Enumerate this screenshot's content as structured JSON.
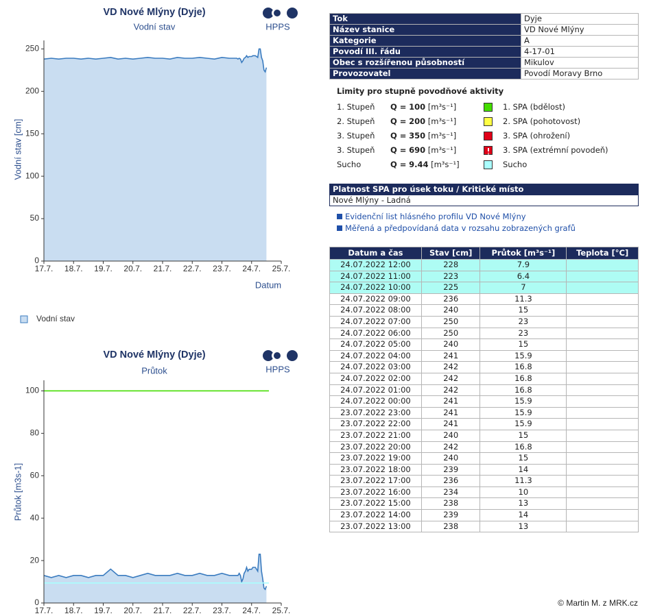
{
  "chart_data": [
    {
      "type": "area",
      "title": "VD Nové Mlýny (Dyje)",
      "subtitle": "Vodní stav",
      "brand": "HPPS",
      "ylabel": "Vodní stav [cm]",
      "xlabel": "Datum",
      "x": [
        17,
        17.25,
        17.5,
        17.75,
        18,
        18.25,
        18.5,
        18.75,
        19,
        19.25,
        19.5,
        19.75,
        20,
        20.25,
        20.5,
        20.75,
        21,
        21.25,
        21.5,
        21.75,
        22,
        22.25,
        22.5,
        22.75,
        23,
        23.25,
        23.5,
        23.542,
        23.583,
        23.625,
        23.667,
        23.708,
        23.75,
        23.792,
        23.833,
        23.875,
        23.917,
        23.958,
        24,
        24.042,
        24.083,
        24.125,
        24.167,
        24.208,
        24.25,
        24.292,
        24.333,
        24.375,
        24.417,
        24.458,
        24.5
      ],
      "series": [
        {
          "name": "Vodní stav",
          "color": "#3a7bbf",
          "fill": "#c9ddf1",
          "values": [
            238,
            239,
            238,
            239,
            239,
            238,
            239,
            238,
            239,
            240,
            238,
            239,
            238,
            239,
            240,
            239,
            239,
            238,
            240,
            239,
            239,
            240,
            239,
            238,
            240,
            239,
            239,
            238,
            239,
            238,
            234,
            236,
            239,
            240,
            242,
            240,
            241,
            241,
            241,
            242,
            242,
            242,
            241,
            240,
            250,
            250,
            240,
            236,
            225,
            223,
            228
          ]
        }
      ],
      "xlim": [
        17,
        25
      ],
      "ylim": [
        0,
        260
      ],
      "xticks": [
        {
          "value": 17,
          "label": "17.7."
        },
        {
          "value": 18,
          "label": "18.7."
        },
        {
          "value": 19,
          "label": "19.7."
        },
        {
          "value": 20,
          "label": "20.7."
        },
        {
          "value": 21,
          "label": "21.7."
        },
        {
          "value": 22,
          "label": "22.7."
        },
        {
          "value": 23,
          "label": "23.7."
        },
        {
          "value": 24,
          "label": "24.7."
        },
        {
          "value": 25,
          "label": "25.7."
        }
      ],
      "yticks": [
        0,
        50,
        100,
        150,
        200,
        250
      ],
      "legend": "bottom-left"
    },
    {
      "type": "area",
      "title": "VD Nové Mlýny (Dyje)",
      "subtitle": "Průtok",
      "brand": "HPPS",
      "ylabel": "Průtok [m3s-1]",
      "x": [
        17,
        17.25,
        17.5,
        17.75,
        18,
        18.25,
        18.5,
        18.75,
        19,
        19.25,
        19.5,
        19.75,
        20,
        20.25,
        20.5,
        20.75,
        21,
        21.25,
        21.5,
        21.75,
        22,
        22.25,
        22.5,
        22.75,
        23,
        23.25,
        23.5,
        23.542,
        23.583,
        23.625,
        23.667,
        23.708,
        23.75,
        23.792,
        23.833,
        23.875,
        23.917,
        23.958,
        24,
        24.042,
        24.083,
        24.125,
        24.167,
        24.208,
        24.25,
        24.292,
        24.333,
        24.375,
        24.417,
        24.458,
        24.5
      ],
      "series": [
        {
          "color": "#3a7bbf",
          "fill": "#c9ddf1",
          "values": [
            13,
            12,
            13,
            12,
            13,
            13,
            12,
            13,
            13,
            16,
            13,
            13,
            12,
            13,
            14,
            13,
            13,
            13,
            14,
            13,
            13,
            14,
            13,
            13,
            14,
            13,
            13,
            13,
            14,
            13,
            10,
            11.3,
            14,
            15,
            16.8,
            15,
            15.9,
            15.9,
            15.9,
            16.8,
            16.8,
            16.8,
            15.9,
            15,
            23,
            23,
            15,
            11.3,
            7,
            6.4,
            7.9
          ]
        }
      ],
      "xlim": [
        17,
        25
      ],
      "ylim": [
        0,
        105
      ],
      "xticks": [
        {
          "value": 17,
          "label": "17.7."
        },
        {
          "value": 18,
          "label": "18.7."
        },
        {
          "value": 19,
          "label": "19.7."
        },
        {
          "value": 20,
          "label": "20.7."
        },
        {
          "value": 21,
          "label": "21.7."
        },
        {
          "value": 22,
          "label": "22.7."
        },
        {
          "value": 23,
          "label": "23.7."
        },
        {
          "value": 24,
          "label": "24.7."
        },
        {
          "value": 25,
          "label": "25.7."
        }
      ],
      "yticks": [
        0,
        20,
        40,
        60,
        80,
        100
      ],
      "limit_lines": true
    }
  ],
  "station": {
    "rows": [
      [
        "Tok",
        "Dyje"
      ],
      [
        "Název stanice",
        "VD Nové Mlýny"
      ],
      [
        "Kategorie",
        "A"
      ],
      [
        "Povodí III. řádu",
        "4-17-01"
      ],
      [
        "Obec s rozšířenou působností",
        "Mikulov"
      ],
      [
        "Provozovatel",
        "Povodí Moravy Brno"
      ]
    ]
  },
  "limits": {
    "title": "Limity pro stupně povodňové aktivity",
    "q_label": "Q =",
    "unit": "[m³s⁻¹]",
    "rows": [
      {
        "level": "1. Stupeň",
        "q": 100,
        "color": "#44dd00",
        "spa": "1. SPA (bdělost)"
      },
      {
        "level": "2. Stupeň",
        "q": 200,
        "color": "#ffff44",
        "spa": "2. SPA (pohotovost)"
      },
      {
        "level": "3. Stupeň",
        "q": 350,
        "color": "#e00018",
        "spa": "3. SPA (ohrožení)"
      },
      {
        "level": "3. Stupeň",
        "q": 690,
        "color": "#e00018",
        "spa": "3. SPA (extrémní povodeň)"
      },
      {
        "level": "Sucho",
        "q": 9.44,
        "color": "#aaffff",
        "spa": "Sucho"
      }
    ]
  },
  "validity": {
    "header": "Platnost SPA pro úsek toku / Kritické místo",
    "value": "Nové Mlýny - Ladná"
  },
  "links": [
    "Evidenční list hlásného profilu VD Nové Mlýny",
    "Měřená a předpovídaná data v rozsahu zobrazených grafů"
  ],
  "measurements": {
    "columns": [
      "Datum a čas",
      "Stav [cm]",
      "Průtok [m³s⁻¹]",
      "Teplota [°C]"
    ],
    "rows": [
      [
        "24.07.2022 12:00",
        228,
        7.9
      ],
      [
        "24.07.2022 11:00",
        223,
        6.4
      ],
      [
        "24.07.2022 10:00",
        225,
        7
      ],
      [
        "24.07.2022 09:00",
        236,
        11.3
      ],
      [
        "24.07.2022 08:00",
        240,
        15
      ],
      [
        "24.07.2022 07:00",
        250,
        23
      ],
      [
        "24.07.2022 06:00",
        250,
        23
      ],
      [
        "24.07.2022 05:00",
        240,
        15
      ],
      [
        "24.07.2022 04:00",
        241,
        15.9
      ],
      [
        "24.07.2022 03:00",
        242,
        16.8
      ],
      [
        "24.07.2022 02:00",
        242,
        16.8
      ],
      [
        "24.07.2022 01:00",
        242,
        16.8
      ],
      [
        "24.07.2022 00:00",
        241,
        15.9
      ],
      [
        "23.07.2022 23:00",
        241,
        15.9
      ],
      [
        "23.07.2022 22:00",
        241,
        15.9
      ],
      [
        "23.07.2022 21:00",
        240,
        15
      ],
      [
        "23.07.2022 20:00",
        242,
        16.8
      ],
      [
        "23.07.2022 19:00",
        240,
        15
      ],
      [
        "23.07.2022 18:00",
        239,
        14
      ],
      [
        "23.07.2022 17:00",
        236,
        11.3
      ],
      [
        "23.07.2022 16:00",
        234,
        10
      ],
      [
        "23.07.2022 15:00",
        238,
        13
      ],
      [
        "23.07.2022 14:00",
        239,
        14
      ],
      [
        "23.07.2022 13:00",
        238,
        13
      ]
    ]
  },
  "footer": "© Martin M. z MRK.cz"
}
